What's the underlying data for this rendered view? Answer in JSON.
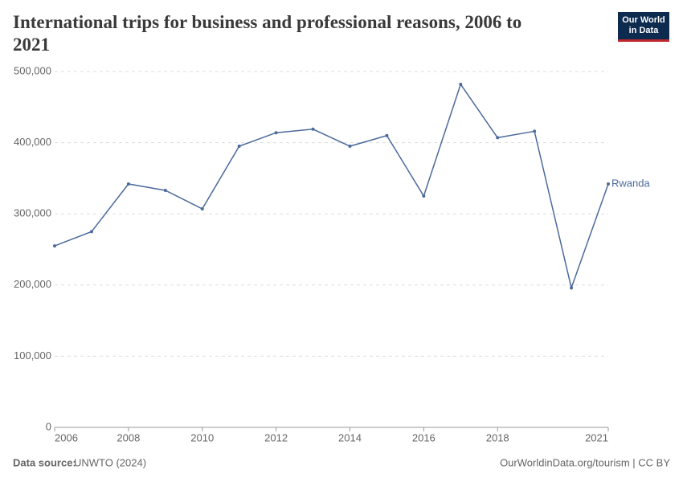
{
  "chart_data": {
    "type": "line",
    "title": "International trips for business and professional reasons, 2006 to 2021",
    "logo": [
      "Our World",
      "in Data"
    ],
    "source_label": "Data source:",
    "source": "UNWTO (2024)",
    "footer_right": "OurWorldinData.org/tourism | CC BY",
    "x": [
      2006,
      2007,
      2008,
      2009,
      2010,
      2011,
      2012,
      2013,
      2014,
      2015,
      2016,
      2017,
      2018,
      2019,
      2020,
      2021
    ],
    "series": [
      {
        "name": "Rwanda",
        "color": "#4c6a9c",
        "values": [
          255000,
          275000,
          342000,
          333000,
          307000,
          395000,
          414000,
          419000,
          395000,
          410000,
          325000,
          482000,
          407000,
          416000,
          196000,
          342000
        ]
      }
    ],
    "xlim": [
      2006,
      2021
    ],
    "xticks": [
      2006,
      2008,
      2010,
      2012,
      2014,
      2016,
      2018,
      2021
    ],
    "ylim": [
      0,
      500000
    ],
    "yticks": [
      0,
      {
        "value": 100000,
        "label": "100,000"
      },
      {
        "value": 200000,
        "label": "200,000"
      },
      {
        "value": 300000,
        "label": "300,000"
      },
      {
        "value": 400000,
        "label": "400,000"
      },
      {
        "value": 500000,
        "label": "500,000"
      }
    ],
    "grid": true
  }
}
